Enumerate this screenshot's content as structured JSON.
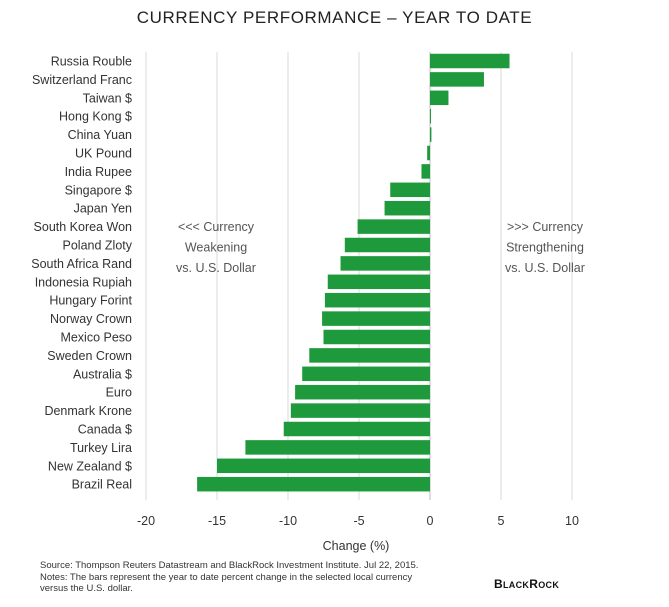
{
  "chart_data": {
    "type": "bar",
    "orientation": "horizontal",
    "title": "CURRENCY PERFORMANCE – YEAR TO DATE",
    "xlabel": "Change (%)",
    "ylabel": "",
    "xlim": [
      -20,
      10
    ],
    "xticks": [
      -20,
      -15,
      -10,
      -5,
      0,
      5,
      10
    ],
    "grid": true,
    "bar_color": "#1e9a3c",
    "categories": [
      "Russia Rouble",
      "Switzerland Franc",
      "Taiwan $",
      "Hong Kong $",
      "China Yuan",
      "UK Pound",
      "India Rupee",
      "Singapore $",
      "Japan Yen",
      "South Korea Won",
      "Poland Zloty",
      "South Africa Rand",
      "Indonesia Rupiah",
      "Hungary Forint",
      "Norway Crown",
      "Mexico Peso",
      "Sweden Crown",
      "Australia $",
      "Euro",
      "Denmark Krone",
      "Canada $",
      "Turkey Lira",
      "New Zealand $",
      "Brazil Real"
    ],
    "values": [
      5.6,
      3.8,
      1.3,
      0.0,
      0.1,
      -0.2,
      -0.6,
      -2.8,
      -3.2,
      -5.1,
      -6.0,
      -6.3,
      -7.2,
      -7.4,
      -7.6,
      -7.5,
      -8.5,
      -9.0,
      -9.5,
      -9.8,
      -10.3,
      -13.0,
      -15.0,
      -16.4
    ],
    "annotations": [
      {
        "side": "left",
        "lines": [
          "<<< Currency",
          "Weakening",
          "vs. U.S. Dollar"
        ]
      },
      {
        "side": "right",
        "lines": [
          ">>> Currency",
          "Strengthening",
          "vs. U.S. Dollar"
        ]
      }
    ]
  },
  "footer": {
    "source": "Source: Thompson Reuters Datastream and BlackRock Investment Institute. Jul 22, 2015.",
    "notes_line1": "Notes: The bars represent the year to date percent change in the selected local currency",
    "notes_line2": "versus the U.S. dollar."
  },
  "logo": {
    "text": "BlackRock"
  }
}
